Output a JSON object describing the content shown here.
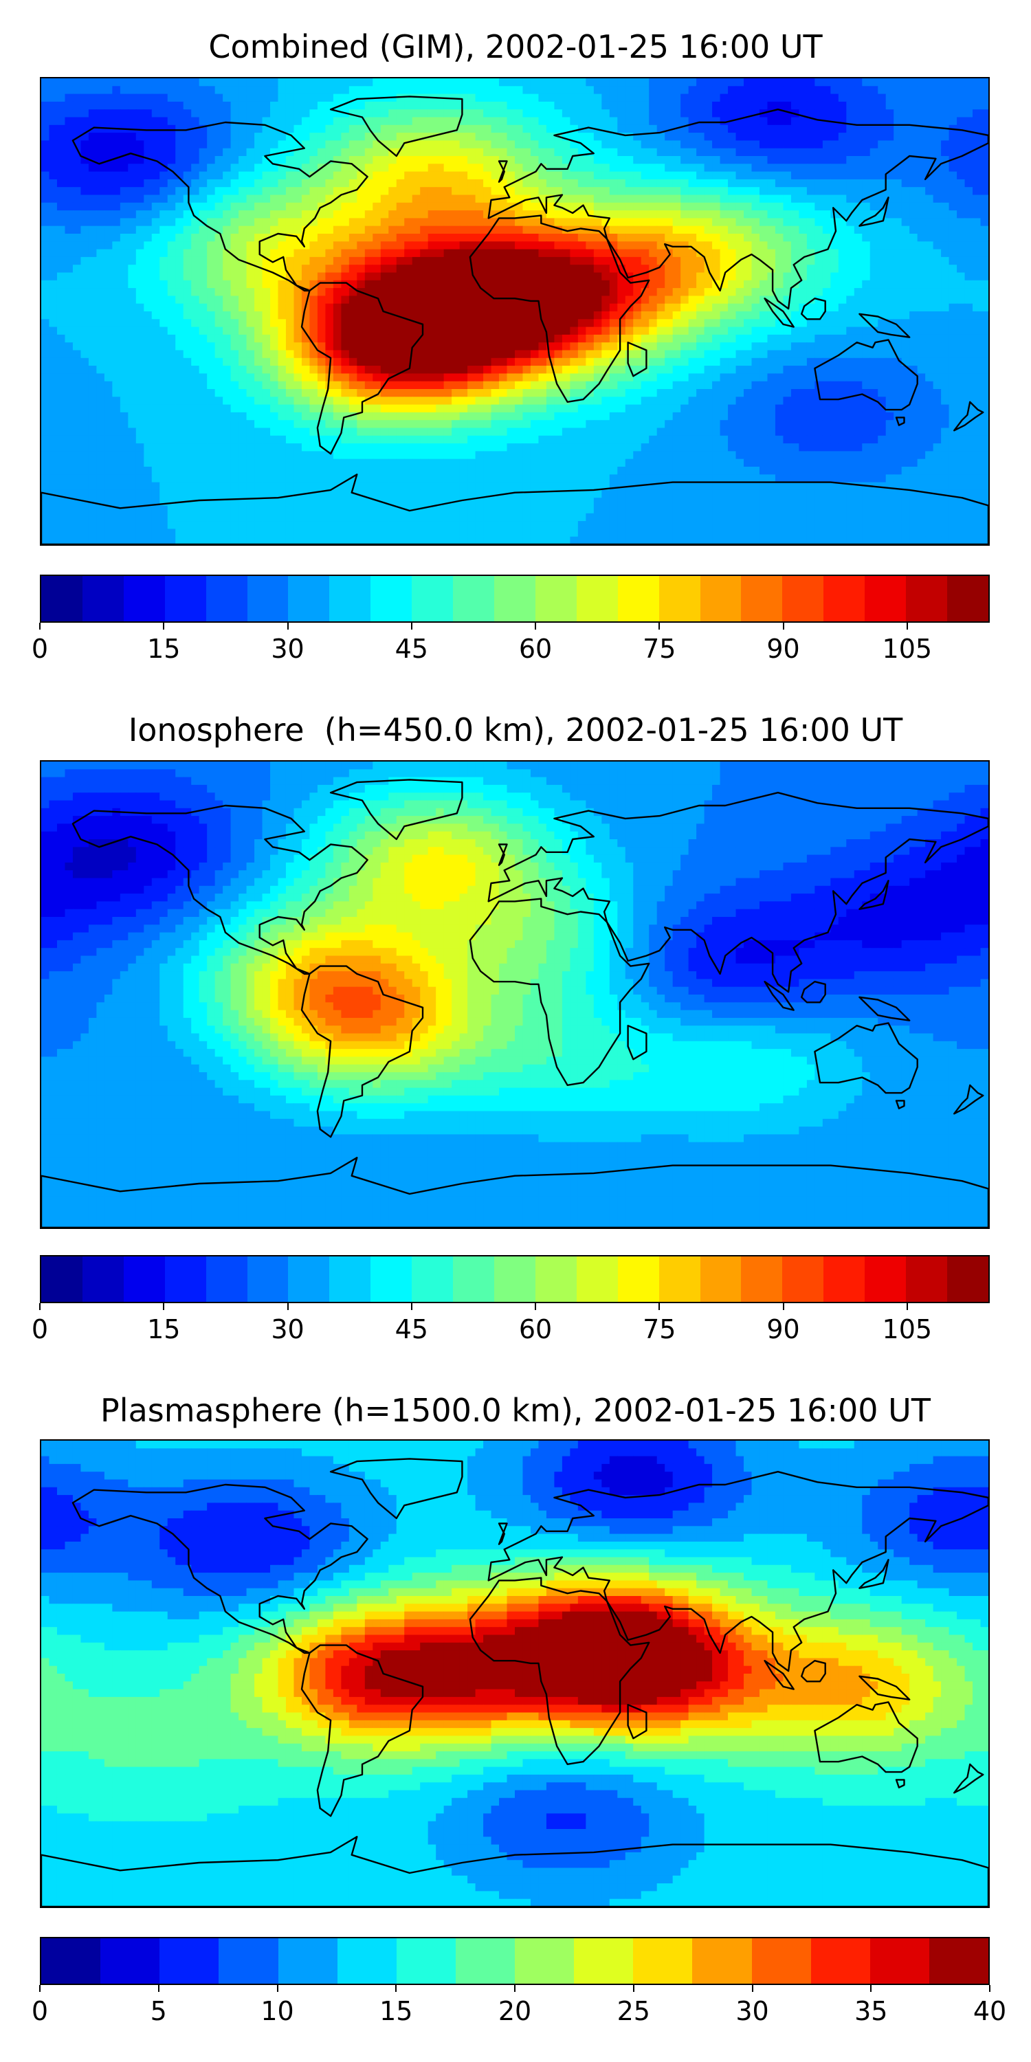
{
  "panels": [
    {
      "title": "Combined (GIM), 2002-01-25 16:00 UT",
      "colorbar": {
        "vmin": 0,
        "vmax": 115,
        "levels": 23,
        "ticks": [
          "0",
          "15",
          "30",
          "45",
          "60",
          "75",
          "90",
          "105"
        ],
        "tick_values": [
          0,
          15,
          30,
          45,
          60,
          75,
          90,
          105
        ]
      },
      "field": {
        "background": 35,
        "blobs": [
          {
            "lon": -45,
            "lat": -12,
            "value": 108
          },
          {
            "lon": 15,
            "lat": 5,
            "value": 92
          },
          {
            "lon": -20,
            "lat": 5,
            "value": 80
          },
          {
            "lon": -30,
            "lat": 52,
            "value": 72
          },
          {
            "lon": 65,
            "lat": 22,
            "value": 68
          },
          {
            "lon": -95,
            "lat": 25,
            "value": 62
          },
          {
            "lon": 100,
            "lat": 20,
            "value": 40
          },
          {
            "lon": -150,
            "lat": 60,
            "value": 12
          },
          {
            "lon": 100,
            "lat": 75,
            "value": 14
          },
          {
            "lon": 120,
            "lat": -40,
            "value": 22
          }
        ]
      }
    },
    {
      "title": "Ionosphere  (h=450.0 km), 2002-01-25 16:00 UT",
      "colorbar": {
        "vmin": 0,
        "vmax": 115,
        "levels": 23,
        "ticks": [
          "0",
          "15",
          "30",
          "45",
          "60",
          "75",
          "90",
          "105"
        ],
        "tick_values": [
          0,
          15,
          30,
          45,
          60,
          75,
          90,
          105
        ]
      },
      "field": {
        "background": 30,
        "blobs": [
          {
            "lon": -55,
            "lat": -12,
            "value": 72
          },
          {
            "lon": -30,
            "lat": 52,
            "value": 68
          },
          {
            "lon": -75,
            "lat": 10,
            "value": 62
          },
          {
            "lon": 10,
            "lat": 20,
            "value": 50
          },
          {
            "lon": 20,
            "lat": -25,
            "value": 45
          },
          {
            "lon": 80,
            "lat": 10,
            "value": 12
          },
          {
            "lon": -150,
            "lat": 55,
            "value": 10
          },
          {
            "lon": 150,
            "lat": 30,
            "value": 15
          },
          {
            "lon": 90,
            "lat": -25,
            "value": 45
          }
        ]
      }
    },
    {
      "title": "Plasmasphere (h=1500.0 km), 2002-01-25 16:00 UT",
      "colorbar": {
        "vmin": 0,
        "vmax": 40,
        "levels": 16,
        "ticks": [
          "0",
          "5",
          "10",
          "15",
          "20",
          "25",
          "30",
          "35",
          "40"
        ],
        "tick_values": [
          0,
          5,
          10,
          15,
          20,
          25,
          30,
          35,
          40
        ]
      },
      "field": {
        "background": 14,
        "blobs": [
          {
            "lon": 35,
            "lat": 10,
            "value": 38
          },
          {
            "lon": -55,
            "lat": 0,
            "value": 33
          },
          {
            "lon": 130,
            "lat": -5,
            "value": 27
          },
          {
            "lon": -15,
            "lat": 0,
            "value": 25
          },
          {
            "lon": 60,
            "lat": 0,
            "value": 26
          },
          {
            "lon": -100,
            "lat": 50,
            "value": 5
          },
          {
            "lon": 45,
            "lat": 75,
            "value": 4
          },
          {
            "lon": 170,
            "lat": 60,
            "value": 6
          },
          {
            "lon": 20,
            "lat": -55,
            "value": 7
          },
          {
            "lon": -140,
            "lat": -25,
            "value": 18
          }
        ]
      }
    }
  ]
}
